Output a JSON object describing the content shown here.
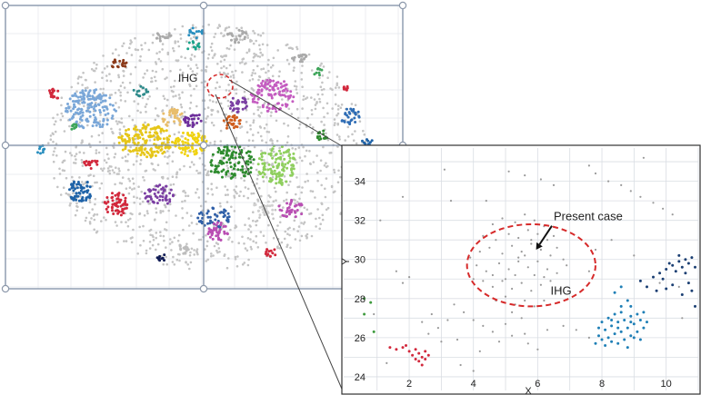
{
  "overview": {
    "label_ihg": "IHG",
    "colors": {
      "frame": "#7f8fa6",
      "handle": "#9aa6b8",
      "grid": "#d9dde3",
      "gray_cells": "#c4c4c4",
      "highlight": "#d62a2a"
    }
  },
  "chart_data": {
    "type": "scatter",
    "xlabel": "X",
    "ylabel": "Y",
    "xlim": [
      0.3,
      11.0
    ],
    "ylim": [
      23.3,
      35.7
    ],
    "xticks": [
      2,
      4,
      6,
      8,
      10
    ],
    "yticks": [
      24,
      26,
      28,
      30,
      32,
      34
    ],
    "grid": true,
    "annotations": [
      {
        "text": "Present case",
        "x": 6.5,
        "y": 32.0,
        "arrow_to": [
          5.95,
          30.5
        ]
      },
      {
        "text": "IHG",
        "x": 6.4,
        "y": 28.2
      }
    ],
    "highlight_circle": {
      "cx": 5.8,
      "cy": 29.7,
      "rx": 2.0,
      "ry": 2.1,
      "color": "#d62a2a",
      "style": "dashed"
    },
    "series": [
      {
        "color": "#999999",
        "points": [
          [
            4.6,
            31.8
          ],
          [
            4.9,
            32.1
          ],
          [
            5.3,
            31.9
          ],
          [
            5.6,
            32.3
          ],
          [
            5.9,
            32.0
          ],
          [
            6.2,
            31.7
          ],
          [
            6.5,
            31.2
          ],
          [
            4.3,
            31.2
          ],
          [
            4.7,
            31.0
          ],
          [
            5.1,
            31.3
          ],
          [
            5.4,
            31.1
          ],
          [
            5.7,
            31.5
          ],
          [
            6.0,
            31.3
          ],
          [
            6.3,
            31.0
          ],
          [
            6.6,
            30.6
          ],
          [
            4.2,
            30.4
          ],
          [
            4.5,
            30.6
          ],
          [
            4.9,
            30.3
          ],
          [
            5.2,
            30.7
          ],
          [
            5.5,
            30.4
          ],
          [
            5.8,
            30.8
          ],
          [
            6.1,
            30.5
          ],
          [
            6.4,
            30.2
          ],
          [
            6.8,
            30.0
          ],
          [
            4.1,
            29.7
          ],
          [
            4.4,
            29.4
          ],
          [
            4.8,
            29.8
          ],
          [
            5.1,
            29.5
          ],
          [
            5.4,
            29.9
          ],
          [
            5.7,
            29.6
          ],
          [
            6.0,
            29.9
          ],
          [
            6.3,
            29.5
          ],
          [
            6.6,
            29.3
          ],
          [
            6.9,
            29.7
          ],
          [
            4.3,
            28.9
          ],
          [
            4.6,
            28.6
          ],
          [
            4.9,
            28.9
          ],
          [
            5.2,
            28.5
          ],
          [
            5.5,
            28.8
          ],
          [
            5.8,
            28.4
          ],
          [
            6.1,
            28.7
          ],
          [
            6.4,
            28.9
          ],
          [
            6.7,
            28.5
          ],
          [
            4.7,
            27.9
          ],
          [
            5.0,
            28.1
          ],
          [
            5.3,
            27.7
          ],
          [
            5.6,
            27.9
          ],
          [
            5.9,
            27.6
          ],
          [
            6.2,
            27.9
          ],
          [
            5.4,
            30.1
          ],
          [
            5.6,
            30.2
          ],
          [
            5.3,
            29.2
          ],
          [
            5.0,
            29.0
          ],
          [
            5.9,
            29.2
          ],
          [
            6.2,
            29.1
          ],
          [
            4.6,
            29.2
          ],
          [
            5.8,
            31.0
          ],
          [
            3.9,
            30.1
          ],
          [
            4.0,
            29.0
          ],
          [
            5.2,
            27.3
          ],
          [
            1.6,
            29.4
          ],
          [
            1.8,
            28.8
          ],
          [
            2.0,
            29.1
          ],
          [
            3.4,
            27.7
          ],
          [
            3.7,
            27.3
          ],
          [
            4.0,
            26.9
          ],
          [
            4.3,
            26.6
          ],
          [
            4.6,
            26.3
          ],
          [
            3.2,
            26.9
          ],
          [
            2.9,
            26.5
          ],
          [
            2.6,
            26.2
          ],
          [
            3.0,
            25.8
          ],
          [
            3.5,
            25.9
          ],
          [
            2.7,
            27.2
          ],
          [
            2.4,
            26.8
          ],
          [
            4.8,
            25.8
          ],
          [
            5.2,
            26.1
          ],
          [
            5.6,
            26.2
          ],
          [
            6.3,
            26.4
          ],
          [
            6.8,
            26.6
          ],
          [
            7.2,
            26.4
          ],
          [
            7.6,
            26.0
          ],
          [
            5.0,
            26.7
          ],
          [
            5.5,
            27.0
          ],
          [
            6.0,
            25.4
          ],
          [
            5.7,
            25.7
          ],
          [
            4.2,
            25.3
          ],
          [
            3.6,
            24.6
          ],
          [
            4.0,
            24.3
          ],
          [
            7.8,
            34.4
          ],
          [
            8.2,
            34.0
          ],
          [
            8.6,
            33.8
          ],
          [
            8.9,
            33.5
          ],
          [
            9.2,
            33.2
          ],
          [
            9.6,
            32.9
          ],
          [
            9.9,
            32.6
          ],
          [
            10.2,
            32.3
          ],
          [
            7.6,
            34.8
          ],
          [
            5.1,
            34.5
          ],
          [
            5.6,
            34.3
          ],
          [
            6.1,
            34.1
          ],
          [
            6.5,
            33.8
          ],
          [
            1.8,
            33.2
          ],
          [
            9.3,
            35.2
          ],
          [
            3.3,
            33.0
          ],
          [
            10.4,
            28.6
          ],
          [
            9.8,
            28.8
          ],
          [
            1.3,
            24.7
          ],
          [
            0.9,
            27.2
          ],
          [
            1.1,
            32.0
          ],
          [
            3.1,
            34.6
          ],
          [
            8.3,
            31.0
          ],
          [
            7.8,
            30.5
          ],
          [
            9.0,
            30.2
          ],
          [
            7.6,
            29.4
          ],
          [
            10.5,
            27.0
          ],
          [
            4.4,
            33.0
          ]
        ]
      },
      {
        "color": "#1f7fb6",
        "points": [
          [
            7.8,
            25.7
          ],
          [
            7.9,
            26.1
          ],
          [
            8.0,
            25.9
          ],
          [
            8.1,
            26.4
          ],
          [
            8.2,
            26.0
          ],
          [
            8.3,
            26.6
          ],
          [
            8.4,
            26.2
          ],
          [
            8.5,
            26.8
          ],
          [
            8.6,
            26.3
          ],
          [
            8.7,
            26.9
          ],
          [
            8.8,
            26.5
          ],
          [
            8.9,
            27.1
          ],
          [
            9.0,
            26.7
          ],
          [
            9.1,
            27.2
          ],
          [
            9.2,
            26.9
          ],
          [
            9.3,
            27.3
          ],
          [
            8.1,
            25.6
          ],
          [
            8.3,
            25.8
          ],
          [
            8.5,
            25.7
          ],
          [
            8.7,
            25.9
          ],
          [
            8.9,
            26.1
          ],
          [
            9.1,
            26.3
          ],
          [
            9.3,
            26.5
          ],
          [
            8.6,
            27.6
          ],
          [
            8.8,
            27.9
          ],
          [
            8.4,
            27.2
          ],
          [
            8.0,
            26.8
          ],
          [
            8.2,
            27.0
          ],
          [
            9.4,
            26.8
          ],
          [
            9.2,
            25.9
          ],
          [
            8.4,
            28.3
          ],
          [
            8.6,
            28.6
          ],
          [
            8.3,
            26.9
          ],
          [
            8.6,
            27.3
          ],
          [
            8.9,
            27.6
          ],
          [
            9.0,
            26.0
          ],
          [
            8.8,
            25.5
          ],
          [
            7.9,
            26.5
          ],
          [
            8.5,
            26.5
          ],
          [
            8.9,
            26.8
          ]
        ]
      },
      {
        "color": "#1b3f73",
        "points": [
          [
            9.6,
            29.1
          ],
          [
            9.8,
            29.3
          ],
          [
            10.0,
            29.5
          ],
          [
            10.2,
            29.7
          ],
          [
            10.4,
            29.9
          ],
          [
            10.6,
            30.0
          ],
          [
            10.7,
            29.8
          ],
          [
            10.5,
            29.6
          ],
          [
            10.3,
            29.4
          ],
          [
            10.8,
            30.1
          ],
          [
            9.9,
            29.0
          ],
          [
            10.1,
            29.8
          ],
          [
            10.4,
            30.2
          ],
          [
            10.6,
            29.3
          ],
          [
            10.9,
            29.6
          ],
          [
            10.7,
            28.8
          ],
          [
            10.2,
            28.7
          ],
          [
            9.4,
            28.6
          ],
          [
            9.2,
            28.9
          ],
          [
            10.8,
            28.4
          ],
          [
            10.5,
            28.2
          ],
          [
            10.9,
            27.6
          ],
          [
            9.7,
            28.4
          ],
          [
            10.0,
            28.5
          ]
        ]
      },
      {
        "color": "#d2283c",
        "points": [
          [
            1.4,
            25.5
          ],
          [
            1.6,
            25.4
          ],
          [
            1.8,
            25.5
          ],
          [
            2.0,
            25.3
          ],
          [
            2.2,
            25.4
          ],
          [
            2.3,
            25.2
          ],
          [
            2.4,
            25.0
          ],
          [
            2.3,
            24.8
          ],
          [
            2.5,
            24.9
          ],
          [
            2.4,
            24.6
          ],
          [
            2.1,
            25.1
          ],
          [
            2.2,
            24.9
          ],
          [
            2.5,
            25.3
          ],
          [
            1.9,
            25.6
          ],
          [
            2.6,
            25.1
          ]
        ]
      },
      {
        "color": "#3f9b3f",
        "points": [
          [
            0.6,
            28.0
          ],
          [
            0.8,
            27.8
          ],
          [
            0.6,
            27.2
          ],
          [
            0.9,
            26.3
          ]
        ]
      }
    ]
  }
}
